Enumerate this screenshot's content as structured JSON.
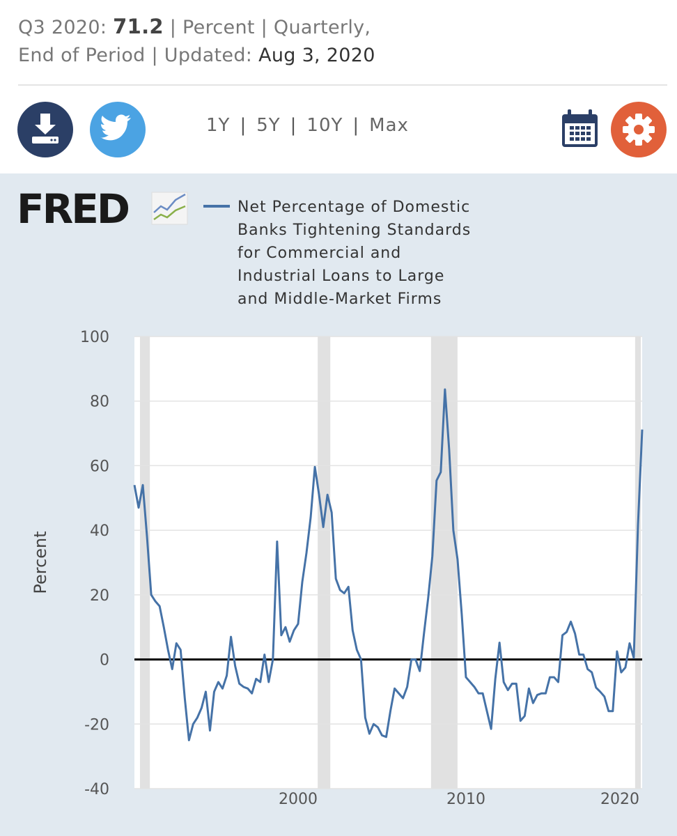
{
  "header": {
    "period": "Q3 2020:",
    "value": "71.2",
    "meta": "| Percent | Quarterly,",
    "line2": "End of Period | Updated:",
    "updated": "Aug 3, 2020"
  },
  "range_buttons": [
    "1Y",
    "5Y",
    "10Y",
    "Max"
  ],
  "logo": "FRED",
  "chart_data": {
    "type": "line",
    "ylabel": "Percent",
    "xlim": [
      1990.25,
      2020.5
    ],
    "xticks": [
      2000,
      2010,
      2020
    ],
    "ylim": [
      -40,
      100
    ],
    "yticks": [
      -40,
      -20,
      0,
      20,
      40,
      60,
      80,
      100
    ],
    "grid": true,
    "recessions": [
      [
        1990.58,
        1991.17
      ],
      [
        2001.17,
        2001.92
      ],
      [
        2007.92,
        2009.5
      ],
      [
        2020.08,
        2020.42
      ]
    ],
    "x": [
      1990.25,
      1990.5,
      1990.75,
      1991,
      1991.25,
      1991.5,
      1991.75,
      1992,
      1992.25,
      1992.5,
      1992.75,
      1993,
      1993.25,
      1993.5,
      1993.75,
      1994,
      1994.25,
      1994.5,
      1994.75,
      1995,
      1995.25,
      1995.5,
      1995.75,
      1996,
      1996.25,
      1996.5,
      1996.75,
      1997,
      1997.25,
      1997.5,
      1997.75,
      1998,
      1998.25,
      1998.5,
      1998.75,
      1999,
      1999.25,
      1999.5,
      1999.75,
      2000,
      2000.25,
      2000.5,
      2000.75,
      2001,
      2001.25,
      2001.5,
      2001.75,
      2002,
      2002.25,
      2002.5,
      2002.75,
      2003,
      2003.25,
      2003.5,
      2003.75,
      2004,
      2004.25,
      2004.5,
      2004.75,
      2005,
      2005.25,
      2005.5,
      2005.75,
      2006,
      2006.25,
      2006.5,
      2006.75,
      2007,
      2007.25,
      2007.5,
      2007.75,
      2008,
      2008.25,
      2008.5,
      2008.75,
      2009,
      2009.25,
      2009.5,
      2009.75,
      2010,
      2010.25,
      2010.5,
      2010.75,
      2011,
      2011.25,
      2011.5,
      2011.75,
      2012,
      2012.25,
      2012.5,
      2012.75,
      2013,
      2013.25,
      2013.5,
      2013.75,
      2014,
      2014.25,
      2014.5,
      2014.75,
      2015,
      2015.25,
      2015.5,
      2015.75,
      2016,
      2016.25,
      2016.5,
      2016.75,
      2017,
      2017.25,
      2017.5,
      2017.75,
      2018,
      2018.25,
      2018.5,
      2018.75,
      2019,
      2019.25,
      2019.5,
      2019.75,
      2020,
      2020.25,
      2020.5
    ],
    "series": [
      {
        "name": "Net Percentage of Domestic Banks Tightening Standards for Commercial and Industrial Loans to Large and Middle-Market Firms",
        "color": "#4572a7",
        "values": [
          54,
          47,
          54,
          38,
          20,
          18,
          16.5,
          10,
          3,
          -3,
          5,
          3,
          -12,
          -25,
          -20,
          -18,
          -15,
          -10,
          -22,
          -10,
          -7,
          -9,
          -5,
          7,
          -2,
          -7.5,
          -8.5,
          -9,
          -10.5,
          -6,
          -7,
          1.5,
          -7,
          0,
          36.5,
          7.5,
          10,
          5.5,
          9,
          11,
          24,
          33,
          44,
          59.6,
          51,
          41,
          51,
          45.5,
          25,
          21.5,
          20.5,
          22.5,
          9,
          3,
          0,
          -18,
          -23,
          -20,
          -21,
          -23.5,
          -24,
          -16,
          -9,
          -10.5,
          -12,
          -8.5,
          0,
          0,
          -3.6,
          8,
          19,
          32,
          55.4,
          58,
          83.6,
          65,
          40,
          31,
          14,
          -5.5,
          -7,
          -8.5,
          -10.5,
          -10.5,
          -16,
          -21.5,
          -6,
          5.2,
          -7,
          -9.5,
          -7.5,
          -7.5,
          -19,
          -17.5,
          -9,
          -13.5,
          -11,
          -10.5,
          -10.5,
          -5.5,
          -5.5,
          -7,
          7.5,
          8.5,
          11.7,
          8,
          1.5,
          1.5,
          -3,
          -4,
          -8.7,
          -10,
          -11.5,
          -16,
          -16,
          2.5,
          -4,
          -2.5,
          5,
          0.5,
          41.5,
          71.2
        ]
      }
    ]
  }
}
